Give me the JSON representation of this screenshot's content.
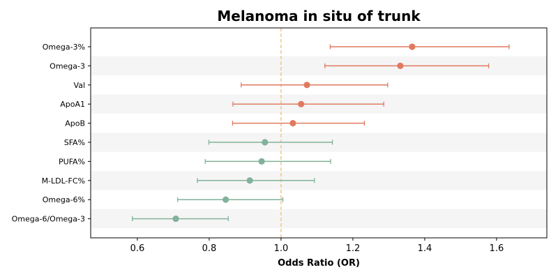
{
  "chart_data": {
    "type": "forest",
    "title": "Melanoma in situ of trunk",
    "xlabel": "Odds Ratio (OR)",
    "ylabel": "",
    "xlim": [
      0.47,
      1.74
    ],
    "xticks": [
      0.6,
      0.8,
      1.0,
      1.2,
      1.4,
      1.6
    ],
    "xtick_labels": [
      "0.6",
      "0.8",
      "1.0",
      "1.2",
      "1.4",
      "1.6"
    ],
    "reference_line": 1.0,
    "reference_color": "#f5c88a",
    "positive_color": "#e07a5f",
    "negative_color": "#81b29a",
    "band_color": "#f5f5f5",
    "grid": false,
    "rows": [
      {
        "label": "Omega-3%",
        "or": 1.365,
        "lower": 1.137,
        "upper": 1.635
      },
      {
        "label": "Omega-3",
        "or": 1.332,
        "lower": 1.122,
        "upper": 1.578
      },
      {
        "label": "Val",
        "or": 1.072,
        "lower": 0.889,
        "upper": 1.297
      },
      {
        "label": "ApoA1",
        "or": 1.056,
        "lower": 0.866,
        "upper": 1.286
      },
      {
        "label": "ApoB",
        "or": 1.033,
        "lower": 0.865,
        "upper": 1.232
      },
      {
        "label": "SFA%",
        "or": 0.955,
        "lower": 0.799,
        "upper": 1.143
      },
      {
        "label": "PUFA%",
        "or": 0.946,
        "lower": 0.789,
        "upper": 1.138
      },
      {
        "label": "M-LDL-FC%",
        "or": 0.913,
        "lower": 0.767,
        "upper": 1.093
      },
      {
        "label": "Omega-6%",
        "or": 0.846,
        "lower": 0.712,
        "upper": 1.005
      },
      {
        "label": "Omega-6/Omega-3",
        "or": 0.707,
        "lower": 0.586,
        "upper": 0.853
      }
    ]
  }
}
